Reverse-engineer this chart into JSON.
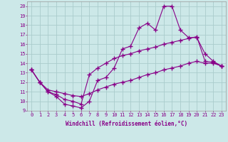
{
  "background_color": "#cce8e8",
  "grid_color": "#aacccc",
  "line_color": "#880088",
  "marker": "+",
  "markersize": 4,
  "linewidth": 0.8,
  "xlabel": "Windchill (Refroidissement éolien,°C)",
  "xlim": [
    -0.5,
    23.5
  ],
  "ylim": [
    9,
    20.5
  ],
  "xticks": [
    0,
    1,
    2,
    3,
    4,
    5,
    6,
    7,
    8,
    9,
    10,
    11,
    12,
    13,
    14,
    15,
    16,
    17,
    18,
    19,
    20,
    21,
    22,
    23
  ],
  "yticks": [
    9,
    10,
    11,
    12,
    13,
    14,
    15,
    16,
    17,
    18,
    19,
    20
  ],
  "series1_x": [
    0,
    1,
    2,
    3,
    4,
    5,
    6,
    7,
    8,
    9,
    10,
    11,
    12,
    13,
    14,
    15,
    16,
    17,
    18,
    19,
    20,
    21,
    22,
    23
  ],
  "series1_y": [
    13.3,
    12.0,
    11.0,
    10.5,
    9.7,
    9.5,
    9.3,
    10.0,
    12.2,
    12.5,
    13.5,
    15.5,
    15.8,
    17.7,
    18.2,
    17.5,
    20.0,
    20.0,
    17.5,
    16.7,
    16.7,
    15.0,
    14.2,
    13.7
  ],
  "series2_x": [
    0,
    1,
    2,
    3,
    4,
    5,
    6,
    7,
    8,
    9,
    10,
    11,
    12,
    13,
    14,
    15,
    16,
    17,
    18,
    19,
    20,
    21,
    22,
    23
  ],
  "series2_y": [
    13.3,
    12.0,
    11.0,
    10.7,
    10.2,
    10.0,
    9.7,
    12.8,
    13.5,
    14.0,
    14.5,
    14.8,
    15.0,
    15.3,
    15.5,
    15.7,
    16.0,
    16.2,
    16.4,
    16.6,
    16.8,
    14.2,
    14.1,
    13.7
  ],
  "series3_x": [
    0,
    1,
    2,
    3,
    4,
    5,
    6,
    7,
    8,
    9,
    10,
    11,
    12,
    13,
    14,
    15,
    16,
    17,
    18,
    19,
    20,
    21,
    22,
    23
  ],
  "series3_y": [
    13.3,
    12.0,
    11.2,
    11.0,
    10.8,
    10.6,
    10.5,
    10.8,
    11.2,
    11.5,
    11.8,
    12.0,
    12.2,
    12.5,
    12.8,
    13.0,
    13.3,
    13.5,
    13.7,
    14.0,
    14.2,
    14.0,
    14.0,
    13.7
  ],
  "tick_fontsize": 5.0,
  "xlabel_fontsize": 5.5
}
